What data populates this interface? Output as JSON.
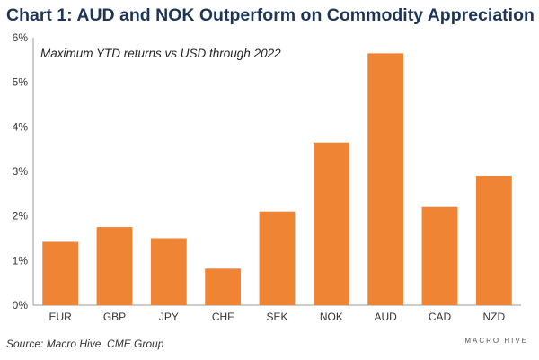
{
  "title": "Chart 1: AUD and NOK Outperform on Commodity Appreciation",
  "source": "Source: Macro Hive, CME Group",
  "logo_text": "MACRO HIVE",
  "chart_data": {
    "type": "bar",
    "subtitle": "Maximum YTD returns vs USD through 2022",
    "categories": [
      "EUR",
      "GBP",
      "JPY",
      "CHF",
      "SEK",
      "NOK",
      "AUD",
      "CAD",
      "NZD"
    ],
    "values": [
      1.42,
      1.75,
      1.5,
      0.82,
      2.1,
      3.65,
      5.65,
      2.2,
      2.9
    ],
    "ylim": [
      0,
      6
    ],
    "yticks": [
      "0%",
      "1%",
      "2%",
      "3%",
      "4%",
      "5%",
      "6%"
    ],
    "bar_color": "#ef8434",
    "grid": false,
    "xlabel": "",
    "ylabel": ""
  }
}
